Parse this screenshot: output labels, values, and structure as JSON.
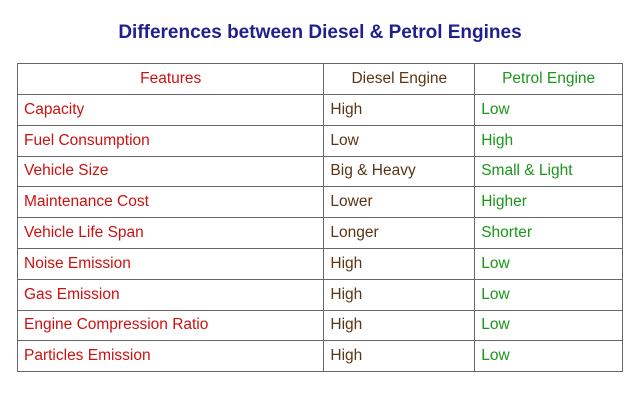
{
  "title": "Differences between Diesel & Petrol Engines",
  "table": {
    "header": [
      "Features",
      "Diesel Engine",
      "Petrol Engine"
    ],
    "rows": [
      [
        "Capacity",
        "High",
        "Low"
      ],
      [
        "Fuel Consumption",
        "Low",
        "High"
      ],
      [
        "Vehicle Size",
        "Big & Heavy",
        "Small & Light"
      ],
      [
        "Maintenance Cost",
        "Lower",
        "Higher"
      ],
      [
        "Vehicle Life Span",
        "Longer",
        "Shorter"
      ],
      [
        "Noise Emission",
        "High",
        "Low"
      ],
      [
        "Gas Emission",
        "High",
        "Low"
      ],
      [
        "Engine Compression Ratio",
        "High",
        "Low"
      ],
      [
        "Particles Emission",
        "High",
        "Low"
      ]
    ]
  }
}
